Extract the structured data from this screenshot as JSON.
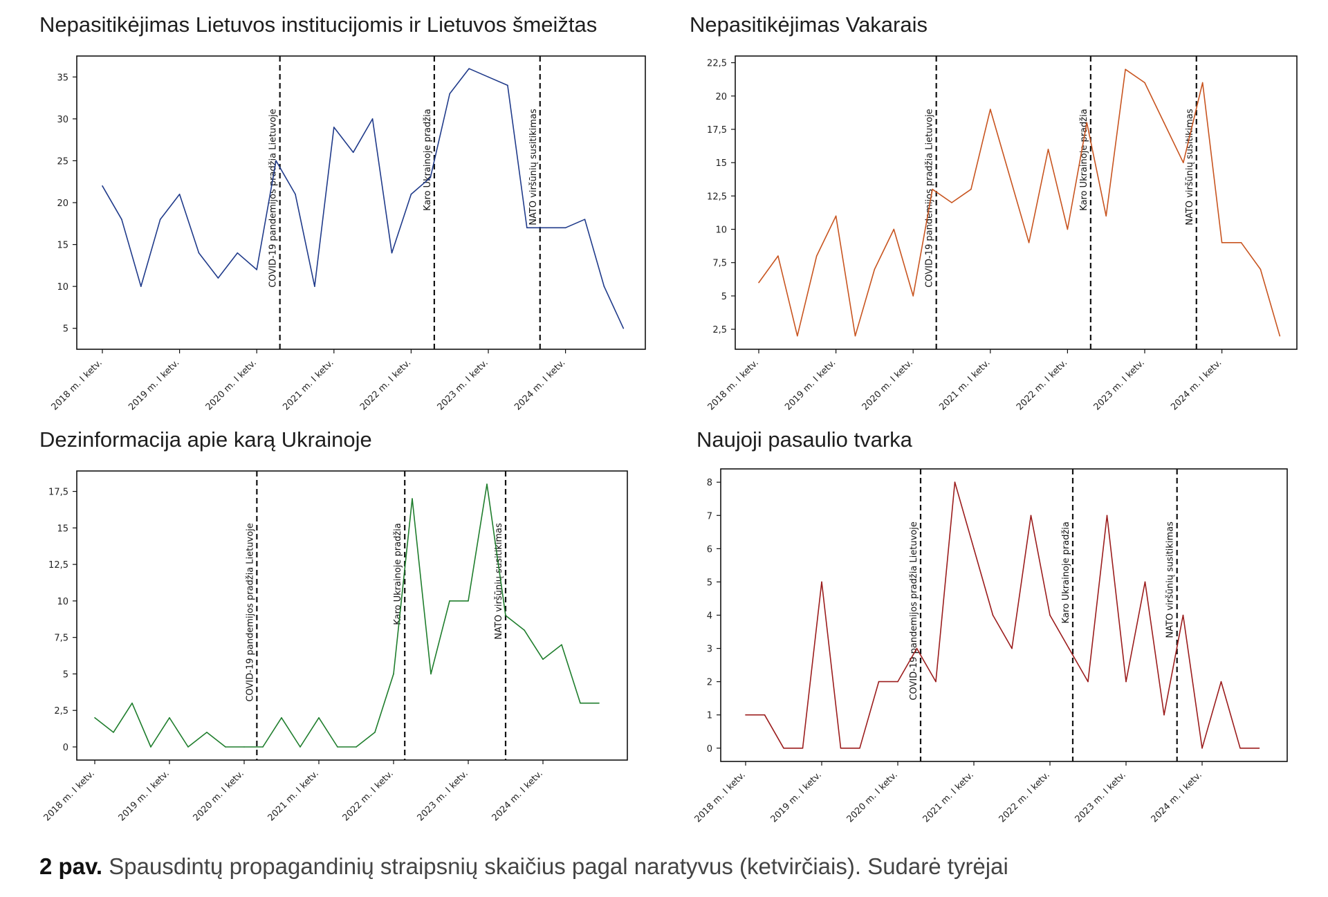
{
  "figure_caption": {
    "label": "2 pav.",
    "text": "Spausdintų propagandinių straipsnių skaičius pagal naratyvus (ketvirčiais). Sudarė tyrėjai"
  },
  "chart_data": [
    {
      "type": "line",
      "title": "Nepasitikėjimas Lietuvos institucijomis ir Lietuvos šmeižtas",
      "color": "#1f3a8a",
      "x_start": 2018.0,
      "x_step": 0.25,
      "x_tick_labels": [
        "2018 m. I ketv.",
        "2019 m. I ketv.",
        "2020 m. I ketv.",
        "2021 m. I ketv.",
        "2022 m. I ketv.",
        "2023 m. I ketv.",
        "2024 m. I ketv."
      ],
      "y_ticks": [
        5,
        10,
        15,
        20,
        25,
        30,
        35
      ],
      "y_tick_labels": [
        "5",
        "10",
        "15",
        "20",
        "25",
        "30",
        "35"
      ],
      "ylim": [
        2.5,
        37.5
      ],
      "values": [
        22,
        18,
        10,
        18,
        21,
        14,
        11,
        14,
        12,
        25,
        21,
        10,
        29,
        26,
        30,
        14,
        21,
        23,
        33,
        36,
        35,
        34,
        17,
        17,
        17,
        18,
        10,
        5
      ],
      "events": [
        {
          "label": "COVID-19 pandemijos pradžia Lietuvoje",
          "x": 2020.3
        },
        {
          "label": "Karo Ukrainoje pradžia",
          "x": 2022.3
        },
        {
          "label": "NATO viršūnių susitikimas",
          "x": 2023.67
        }
      ]
    },
    {
      "type": "line",
      "title": "Nepasitikėjimas Vakarais",
      "color": "#c8541f",
      "x_start": 2018.0,
      "x_step": 0.25,
      "x_tick_labels": [
        "2018 m. I ketv.",
        "2019 m. I ketv.",
        "2020 m. I ketv.",
        "2021 m. I ketv.",
        "2022 m. I ketv.",
        "2023 m. I ketv.",
        "2024 m. I ketv."
      ],
      "y_ticks": [
        2.5,
        5,
        7.5,
        10,
        12.5,
        15,
        17.5,
        20,
        22.5
      ],
      "y_tick_labels": [
        "2,5",
        "5",
        "7,5",
        "10",
        "12,5",
        "15",
        "17,5",
        "20",
        "22,5"
      ],
      "ylim": [
        1.0,
        23.0
      ],
      "values": [
        6,
        8,
        2,
        8,
        11,
        2,
        7,
        10,
        5,
        13,
        12,
        13,
        19,
        14,
        9,
        16,
        10,
        18,
        11,
        22,
        21,
        18,
        15,
        21,
        9,
        9,
        7,
        2
      ],
      "events": [
        {
          "label": "COVID-19 pandemijos pradžia Lietuvoje",
          "x": 2020.3
        },
        {
          "label": "Karo Ukrainoje pradžia",
          "x": 2022.3
        },
        {
          "label": "NATO viršūnių susitikimas",
          "x": 2023.67
        }
      ]
    },
    {
      "type": "line",
      "title": "Dezinformacija apie karą Ukrainoje",
      "color": "#1e7d2c",
      "x_start": 2018.0,
      "x_step": 0.25,
      "x_tick_labels": [
        "2018 m. I ketv.",
        "2019 m. I ketv.",
        "2020 m. I ketv.",
        "2021 m. I ketv.",
        "2022 m. I ketv.",
        "2023 m. I ketv.",
        "2024 m. I ketv."
      ],
      "y_ticks": [
        0,
        2.5,
        5,
        7.5,
        10,
        12.5,
        15,
        17.5
      ],
      "y_tick_labels": [
        "0",
        "2,5",
        "5",
        "7,5",
        "10",
        "12,5",
        "15",
        "17,5"
      ],
      "ylim": [
        -0.9,
        18.9
      ],
      "values": [
        2,
        1,
        3,
        0,
        2,
        0,
        1,
        0,
        0,
        0,
        2,
        0,
        2,
        0,
        0,
        1,
        5,
        17,
        5,
        10,
        10,
        18,
        9,
        8,
        6,
        7,
        3,
        3
      ],
      "events": [
        {
          "label": "COVID-19 pandemijos pradžia Lietuvoje",
          "x": 2020.17
        },
        {
          "label": "Karo Ukrainoje pradžia",
          "x": 2022.15
        },
        {
          "label": "NATO viršūnių susitikimas",
          "x": 2023.5
        }
      ]
    },
    {
      "type": "line",
      "title": "Naujoji pasaulio tvarka",
      "color": "#9b1c1c",
      "x_start": 2018.0,
      "x_step": 0.25,
      "x_tick_labels": [
        "2018 m. I ketv.",
        "2019 m. I ketv.",
        "2020 m. I ketv.",
        "2021 m. I ketv.",
        "2022 m. I ketv.",
        "2023 m. I ketv.",
        "2024 m. I ketv."
      ],
      "y_ticks": [
        0,
        1,
        2,
        3,
        4,
        5,
        6,
        7,
        8
      ],
      "y_tick_labels": [
        "0",
        "1",
        "2",
        "3",
        "4",
        "5",
        "6",
        "7",
        "8"
      ],
      "ylim": [
        -0.4,
        8.4
      ],
      "values": [
        1,
        1,
        0,
        0,
        5,
        0,
        0,
        2,
        2,
        3,
        2,
        8,
        6,
        4,
        3,
        7,
        4,
        3,
        2,
        7,
        2,
        5,
        1,
        4,
        0,
        2,
        0,
        0
      ],
      "events": [
        {
          "label": "COVID-19 pandemijos pradžia Lietuvoje",
          "x": 2020.3
        },
        {
          "label": "Karo Ukrainoje pradžia",
          "x": 2022.3
        },
        {
          "label": "NATO viršūnių susitikimas",
          "x": 2023.67
        }
      ]
    }
  ]
}
